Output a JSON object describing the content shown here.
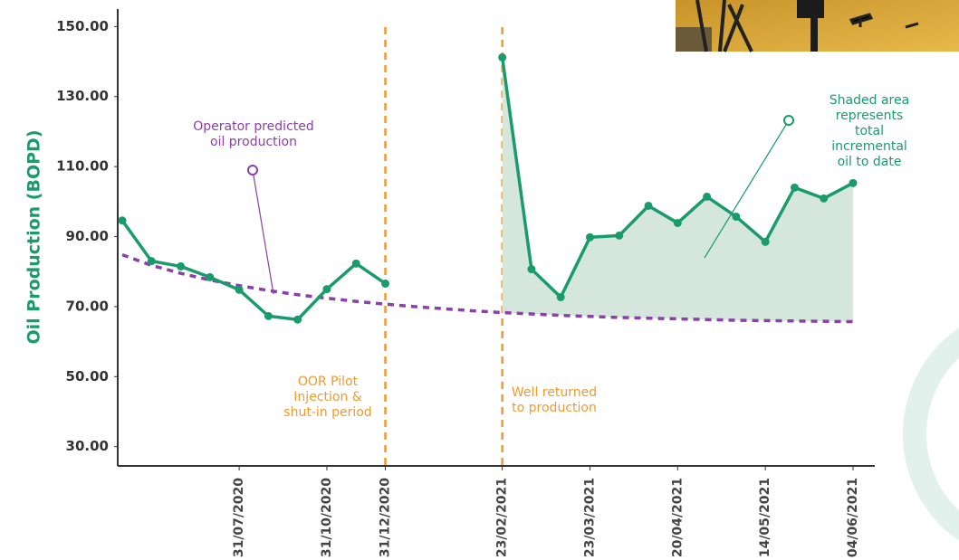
{
  "chart_data": {
    "type": "line",
    "y_label": "Oil Production (BOPD)",
    "categories": [
      null,
      null,
      null,
      null,
      "31/07/2020",
      null,
      null,
      "31/10/2020",
      null,
      "31/12/2020",
      null,
      null,
      null,
      "23/02/2021",
      null,
      null,
      "23/03/2021",
      null,
      null,
      "20/04/2021",
      null,
      null,
      "14/05/2021",
      null,
      null,
      "04/06/2021"
    ],
    "series": [
      {
        "name": "Oil production",
        "color": "#1a9b6c",
        "area_fill": "#d5e6dc",
        "values": [
          94.6,
          83.0,
          81.5,
          78.4,
          74.8,
          67.3,
          66.3,
          75.0,
          82.3,
          76.6,
          null,
          null,
          null,
          141.2,
          80.7,
          72.7,
          89.8,
          90.3,
          98.8,
          93.9,
          101.4,
          95.7,
          88.5,
          104.0,
          100.9,
          105.3
        ]
      },
      {
        "name": "Operator predicted oil production",
        "color": "#8b3fa8",
        "dashed": true,
        "values": [
          84.8,
          81.8,
          79.5,
          77.6,
          76.0,
          74.6,
          73.4,
          72.4,
          71.5,
          70.7,
          70.0,
          69.4,
          68.8,
          68.3,
          67.9,
          67.5,
          67.2,
          66.9,
          66.7,
          66.5,
          66.3,
          66.1,
          66.0,
          65.9,
          65.8,
          65.7
        ]
      }
    ],
    "ylim": [
      24.5,
      155
    ],
    "yticks": [
      {
        "value": 30,
        "label": "30.00"
      },
      {
        "value": 50,
        "label": "50.00"
      },
      {
        "value": 70,
        "label": "70.00"
      },
      {
        "value": 90,
        "label": "90.00"
      },
      {
        "value": 110,
        "label": "110.00"
      },
      {
        "value": 130,
        "label": "130.00"
      },
      {
        "value": 150,
        "label": "150.00"
      }
    ],
    "dividers": [
      "31/12/2020",
      "23/02/2021"
    ],
    "divider_color": "#f39a2b",
    "annotations": [
      {
        "text": "Operator predicted\noil production",
        "color": "#8b3fa8"
      },
      {
        "text": "Shaded area\nrepresents total\nincremental oil to date",
        "color": "#1a9b6c"
      },
      {
        "text": "OOR Pilot\nInjection &\nshut-in period",
        "color": "#f39a2b"
      },
      {
        "text": "Well returned\nto production",
        "color": "#f39a2b"
      }
    ]
  }
}
